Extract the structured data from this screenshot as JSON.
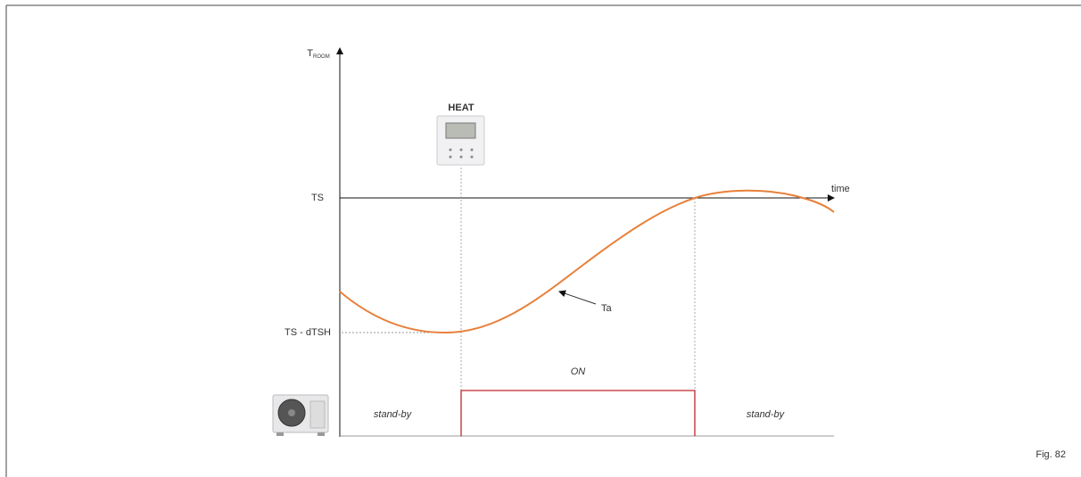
{
  "axis": {
    "y_label": "T",
    "y_label_sub": "ROOM",
    "x_label": "time"
  },
  "levels": {
    "setpoint": "TS",
    "lower": "TS - dTSH"
  },
  "curve_label": "Ta",
  "controller_label": "HEAT",
  "states": {
    "on": "ON",
    "standby": [
      "stand-by",
      "stand-by"
    ]
  },
  "figure_label": "Fig. 82"
}
